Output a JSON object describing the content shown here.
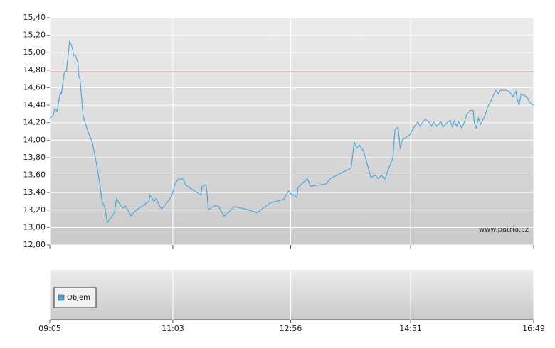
{
  "chart_data": [
    {
      "type": "line",
      "annotation": "www.patria.cz",
      "x": [
        "09:05",
        "09:08",
        "09:10",
        "09:12",
        "09:15",
        "09:16",
        "09:19",
        "09:21",
        "09:23",
        "09:24",
        "09:26",
        "09:28",
        "09:30",
        "09:32",
        "09:33",
        "09:34",
        "09:37",
        "09:41",
        "09:46",
        "09:49",
        "09:51",
        "09:53",
        "09:55",
        "09:58",
        "10:00",
        "10:04",
        "10:07",
        "10:09",
        "10:12",
        "10:15",
        "10:17",
        "10:20",
        "10:23",
        "10:27",
        "10:34",
        "10:40",
        "10:41",
        "10:45",
        "10:47",
        "10:49",
        "10:52",
        "10:57",
        "11:02",
        "11:05",
        "11:08",
        "11:13",
        "11:15",
        "11:21",
        "11:30",
        "11:31",
        "11:35",
        "11:37",
        "11:40",
        "11:44",
        "11:47",
        "11:52",
        "11:56",
        "12:02",
        "12:13",
        "12:24",
        "12:36",
        "12:49",
        "12:54",
        "12:57",
        "13:00",
        "13:02",
        "13:03",
        "13:12",
        "13:15",
        "13:30",
        "13:34",
        "13:54",
        "13:57",
        "13:59",
        "14:02",
        "14:06",
        "14:13",
        "14:17",
        "14:20",
        "14:23",
        "14:26",
        "14:28",
        "14:34",
        "14:36",
        "14:39",
        "14:41",
        "14:43",
        "14:50",
        "14:55",
        "14:58",
        "15:00",
        "15:03",
        "15:05",
        "15:09",
        "15:11",
        "15:13",
        "15:16",
        "15:20",
        "15:22",
        "15:26",
        "15:29",
        "15:31",
        "15:33",
        "15:35",
        "15:37",
        "15:40",
        "15:42",
        "15:45",
        "15:48",
        "15:51",
        "15:52",
        "15:54",
        "15:56",
        "15:58",
        "16:02",
        "16:05",
        "16:08",
        "16:11",
        "16:13",
        "16:15",
        "16:17",
        "16:23",
        "16:26",
        "16:29",
        "16:32",
        "16:33",
        "16:35",
        "16:37",
        "16:42",
        "16:46",
        "16:49"
      ],
      "values": [
        14.25,
        14.28,
        14.36,
        14.33,
        14.55,
        14.52,
        14.78,
        14.79,
        15.02,
        15.13,
        15.08,
        14.97,
        14.96,
        14.88,
        14.72,
        14.7,
        14.27,
        14.12,
        13.96,
        13.78,
        13.64,
        13.5,
        13.3,
        13.22,
        13.06,
        13.12,
        13.17,
        13.33,
        13.27,
        13.22,
        13.25,
        13.2,
        13.13,
        13.19,
        13.25,
        13.3,
        13.37,
        13.3,
        13.33,
        13.28,
        13.21,
        13.28,
        13.36,
        13.5,
        13.55,
        13.56,
        13.49,
        13.44,
        13.37,
        13.47,
        13.49,
        13.2,
        13.23,
        13.25,
        13.24,
        13.13,
        13.17,
        13.24,
        13.21,
        13.17,
        13.28,
        13.32,
        13.42,
        13.37,
        13.37,
        13.34,
        13.46,
        13.56,
        13.47,
        13.5,
        13.56,
        13.68,
        13.98,
        13.91,
        13.94,
        13.87,
        13.57,
        13.6,
        13.56,
        13.6,
        13.55,
        13.61,
        13.8,
        14.12,
        14.15,
        13.9,
        14.0,
        14.06,
        14.16,
        14.21,
        14.16,
        14.21,
        14.24,
        14.2,
        14.16,
        14.21,
        14.16,
        14.21,
        14.15,
        14.2,
        14.23,
        14.15,
        14.22,
        14.16,
        14.21,
        14.14,
        14.19,
        14.3,
        14.34,
        14.34,
        14.2,
        14.14,
        14.25,
        14.18,
        14.27,
        14.38,
        14.45,
        14.53,
        14.57,
        14.53,
        14.57,
        14.57,
        14.55,
        14.5,
        14.56,
        14.48,
        14.4,
        14.53,
        14.5,
        14.42,
        14.4
      ],
      "color": "#4fa8d8",
      "ref_line": {
        "value": 14.78,
        "color": "#e0463a"
      },
      "xlim": [
        "09:05",
        "16:49"
      ],
      "xticks": [
        "09:05",
        "11:03",
        "12:56",
        "14:51",
        "16:49"
      ],
      "ylim": [
        12.8,
        15.4
      ],
      "yticks": [
        {
          "value": 12.8,
          "label": "12,80"
        },
        {
          "value": 13.0,
          "label": "13,00"
        },
        {
          "value": 13.2,
          "label": "13,20"
        },
        {
          "value": 13.4,
          "label": "13,40"
        },
        {
          "value": 13.6,
          "label": "13,60"
        },
        {
          "value": 13.8,
          "label": "13,80"
        },
        {
          "value": 14.0,
          "label": "14,00"
        },
        {
          "value": 14.2,
          "label": "14,20"
        },
        {
          "value": 14.4,
          "label": "14,40"
        },
        {
          "value": 14.6,
          "label": "14,60"
        },
        {
          "value": 14.8,
          "label": "14,80"
        },
        {
          "value": 15.0,
          "label": "15,00"
        },
        {
          "value": 15.2,
          "label": "15,20"
        },
        {
          "value": 15.4,
          "label": "15,40"
        }
      ],
      "grid": true
    },
    {
      "type": "bar",
      "legend": "upper left",
      "series": [
        {
          "name": "Objem",
          "color": "#4a9ccf",
          "values": []
        }
      ]
    }
  ]
}
